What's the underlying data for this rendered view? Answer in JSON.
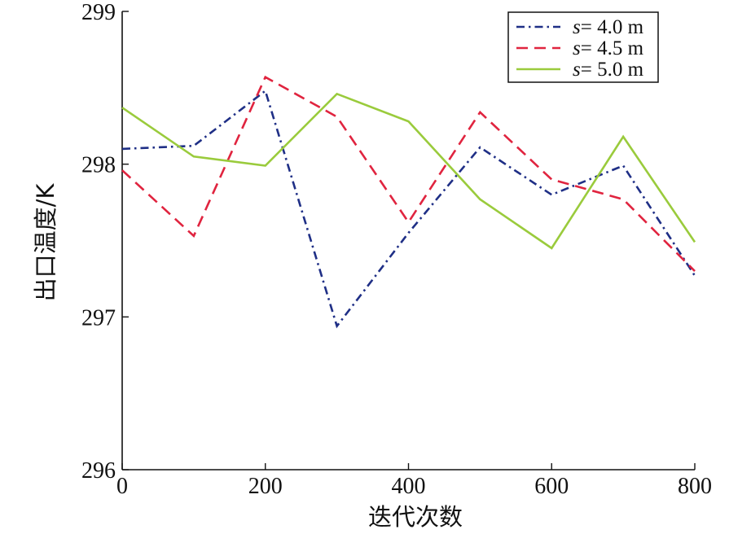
{
  "chart_data": {
    "type": "line",
    "title": "",
    "xlabel": "迭代次数",
    "ylabel": "出口温度/K",
    "xlim": [
      0,
      800
    ],
    "ylim": [
      296,
      299
    ],
    "xticks": [
      "0",
      "200",
      "400",
      "600",
      "800"
    ],
    "yticks": [
      "296",
      "297",
      "298",
      "299"
    ],
    "xtick_values": [
      0,
      200,
      400,
      600,
      800
    ],
    "ytick_values": [
      296,
      297,
      298,
      299
    ],
    "x": [
      0,
      100,
      200,
      300,
      400,
      500,
      600,
      700,
      800
    ],
    "grid": false,
    "legend_position": "top-right",
    "series": [
      {
        "name": "s= 4.0 m",
        "name_prefix": "s",
        "name_suffix": "= 4.0 m",
        "color": "#1f2f86",
        "style": "dash-dot",
        "values": [
          298.1,
          298.12,
          298.48,
          296.94,
          297.55,
          298.11,
          297.8,
          297.99,
          297.27
        ]
      },
      {
        "name": "s= 4.5 m",
        "name_prefix": "s",
        "name_suffix": "= 4.5 m",
        "color": "#e0243f",
        "style": "dashed",
        "values": [
          297.96,
          297.53,
          298.57,
          298.31,
          297.62,
          298.34,
          297.9,
          297.77,
          297.3
        ]
      },
      {
        "name": "s= 5.0 m",
        "name_prefix": "s",
        "name_suffix": "= 5.0 m",
        "color": "#9acb3c",
        "style": "solid",
        "values": [
          298.37,
          298.05,
          297.99,
          298.46,
          298.28,
          297.77,
          297.45,
          298.18,
          297.49
        ]
      }
    ]
  }
}
